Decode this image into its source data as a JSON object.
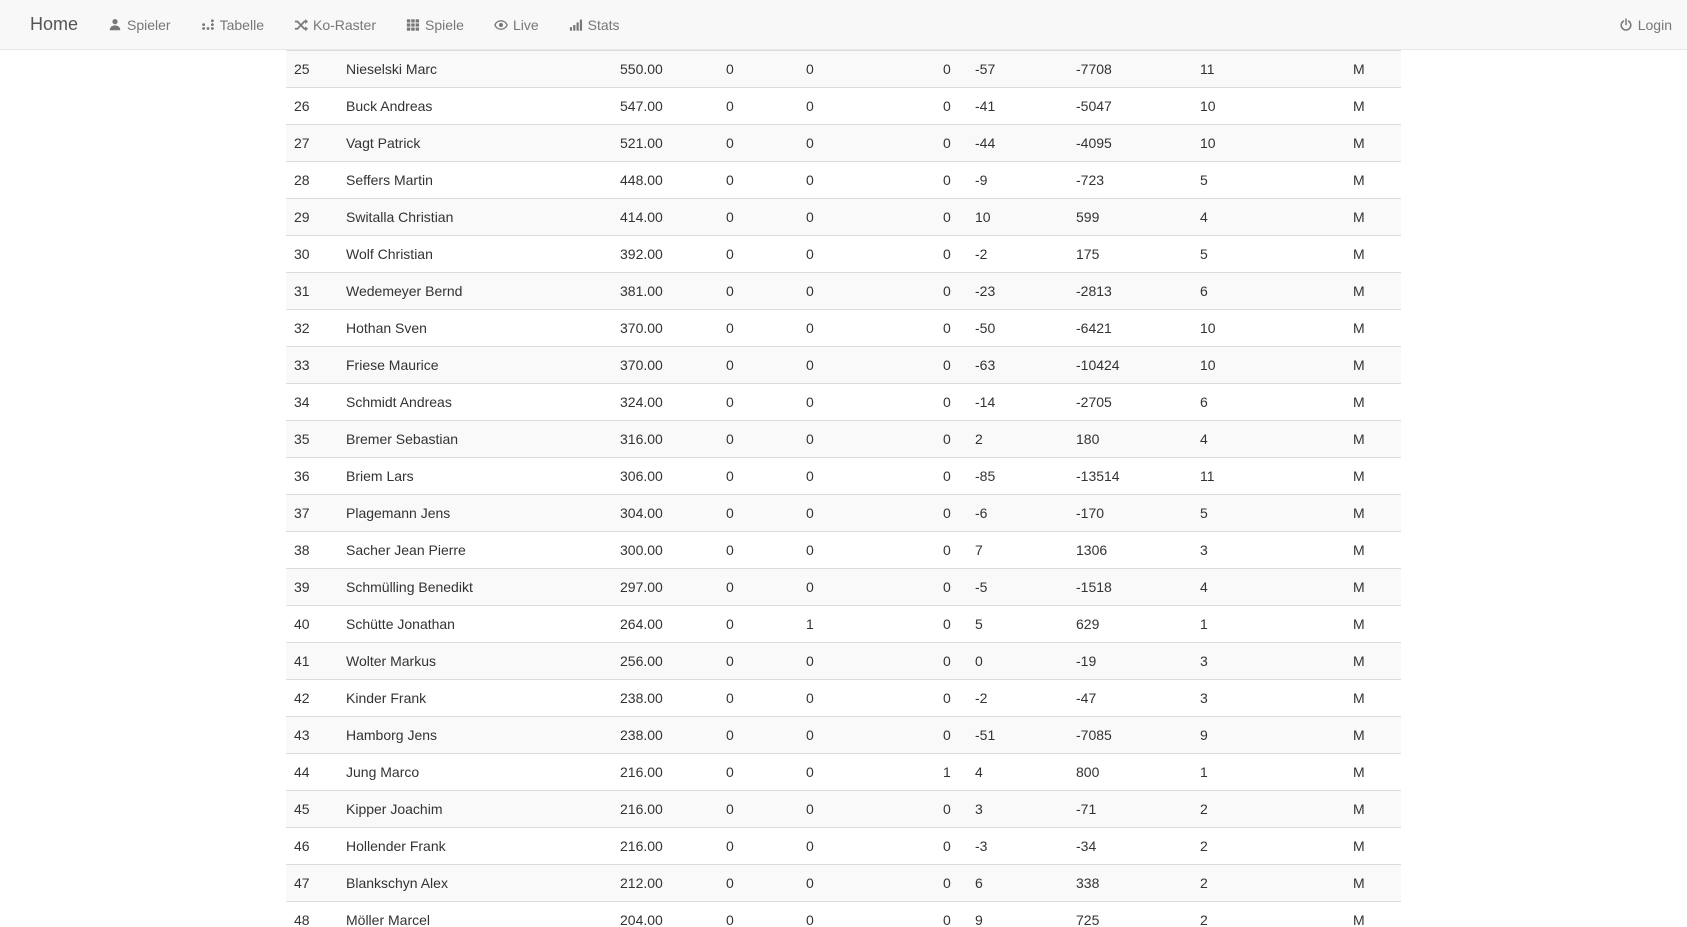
{
  "navbar": {
    "brand": "Home",
    "items": [
      {
        "label": "Spieler",
        "icon": "user-icon"
      },
      {
        "label": "Tabelle",
        "icon": "dot-chart-icon"
      },
      {
        "label": "Ko-Raster",
        "icon": "shuffle-icon"
      },
      {
        "label": "Spiele",
        "icon": "grid-icon"
      },
      {
        "label": "Live",
        "icon": "eye-icon"
      },
      {
        "label": "Stats",
        "icon": "signal-bars-icon"
      }
    ],
    "login": {
      "label": "Login",
      "icon": "power-icon"
    }
  },
  "colors": {
    "navbar_bg": "#f8f8f8",
    "navbar_border": "#e7e7e7",
    "nav_link": "#777777",
    "brand": "#555555",
    "stripe": "#f9f9f9",
    "row_border": "#dddddd",
    "text": "#333333"
  },
  "table": {
    "rows": [
      [
        "25",
        "Nieselski Marc",
        "550.00",
        "0",
        "0",
        "0",
        "-57",
        "-7708",
        "11",
        "M"
      ],
      [
        "26",
        "Buck Andreas",
        "547.00",
        "0",
        "0",
        "0",
        "-41",
        "-5047",
        "10",
        "M"
      ],
      [
        "27",
        "Vagt Patrick",
        "521.00",
        "0",
        "0",
        "0",
        "-44",
        "-4095",
        "10",
        "M"
      ],
      [
        "28",
        "Seffers Martin",
        "448.00",
        "0",
        "0",
        "0",
        "-9",
        "-723",
        "5",
        "M"
      ],
      [
        "29",
        "Switalla Christian",
        "414.00",
        "0",
        "0",
        "0",
        "10",
        "599",
        "4",
        "M"
      ],
      [
        "30",
        "Wolf Christian",
        "392.00",
        "0",
        "0",
        "0",
        "-2",
        "175",
        "5",
        "M"
      ],
      [
        "31",
        "Wedemeyer Bernd",
        "381.00",
        "0",
        "0",
        "0",
        "-23",
        "-2813",
        "6",
        "M"
      ],
      [
        "32",
        "Hothan Sven",
        "370.00",
        "0",
        "0",
        "0",
        "-50",
        "-6421",
        "10",
        "M"
      ],
      [
        "33",
        "Friese Maurice",
        "370.00",
        "0",
        "0",
        "0",
        "-63",
        "-10424",
        "10",
        "M"
      ],
      [
        "34",
        "Schmidt Andreas",
        "324.00",
        "0",
        "0",
        "0",
        "-14",
        "-2705",
        "6",
        "M"
      ],
      [
        "35",
        "Bremer Sebastian",
        "316.00",
        "0",
        "0",
        "0",
        "2",
        "180",
        "4",
        "M"
      ],
      [
        "36",
        "Briem Lars",
        "306.00",
        "0",
        "0",
        "0",
        "-85",
        "-13514",
        "11",
        "M"
      ],
      [
        "37",
        "Plagemann Jens",
        "304.00",
        "0",
        "0",
        "0",
        "-6",
        "-170",
        "5",
        "M"
      ],
      [
        "38",
        "Sacher Jean Pierre",
        "300.00",
        "0",
        "0",
        "0",
        "7",
        "1306",
        "3",
        "M"
      ],
      [
        "39",
        "Schmülling Benedikt",
        "297.00",
        "0",
        "0",
        "0",
        "-5",
        "-1518",
        "4",
        "M"
      ],
      [
        "40",
        "Schütte Jonathan",
        "264.00",
        "0",
        "1",
        "0",
        "5",
        "629",
        "1",
        "M"
      ],
      [
        "41",
        "Wolter Markus",
        "256.00",
        "0",
        "0",
        "0",
        "0",
        "-19",
        "3",
        "M"
      ],
      [
        "42",
        "Kinder Frank",
        "238.00",
        "0",
        "0",
        "0",
        "-2",
        "-47",
        "3",
        "M"
      ],
      [
        "43",
        "Hamborg Jens",
        "238.00",
        "0",
        "0",
        "0",
        "-51",
        "-7085",
        "9",
        "M"
      ],
      [
        "44",
        "Jung Marco",
        "216.00",
        "0",
        "0",
        "1",
        "4",
        "800",
        "1",
        "M"
      ],
      [
        "45",
        "Kipper Joachim",
        "216.00",
        "0",
        "0",
        "0",
        "3",
        "-71",
        "2",
        "M"
      ],
      [
        "46",
        "Hollender Frank",
        "216.00",
        "0",
        "0",
        "0",
        "-3",
        "-34",
        "2",
        "M"
      ],
      [
        "47",
        "Blankschyn Alex",
        "212.00",
        "0",
        "0",
        "0",
        "6",
        "338",
        "2",
        "M"
      ],
      [
        "48",
        "Möller Marcel",
        "204.00",
        "0",
        "0",
        "0",
        "9",
        "725",
        "2",
        "M"
      ]
    ]
  }
}
